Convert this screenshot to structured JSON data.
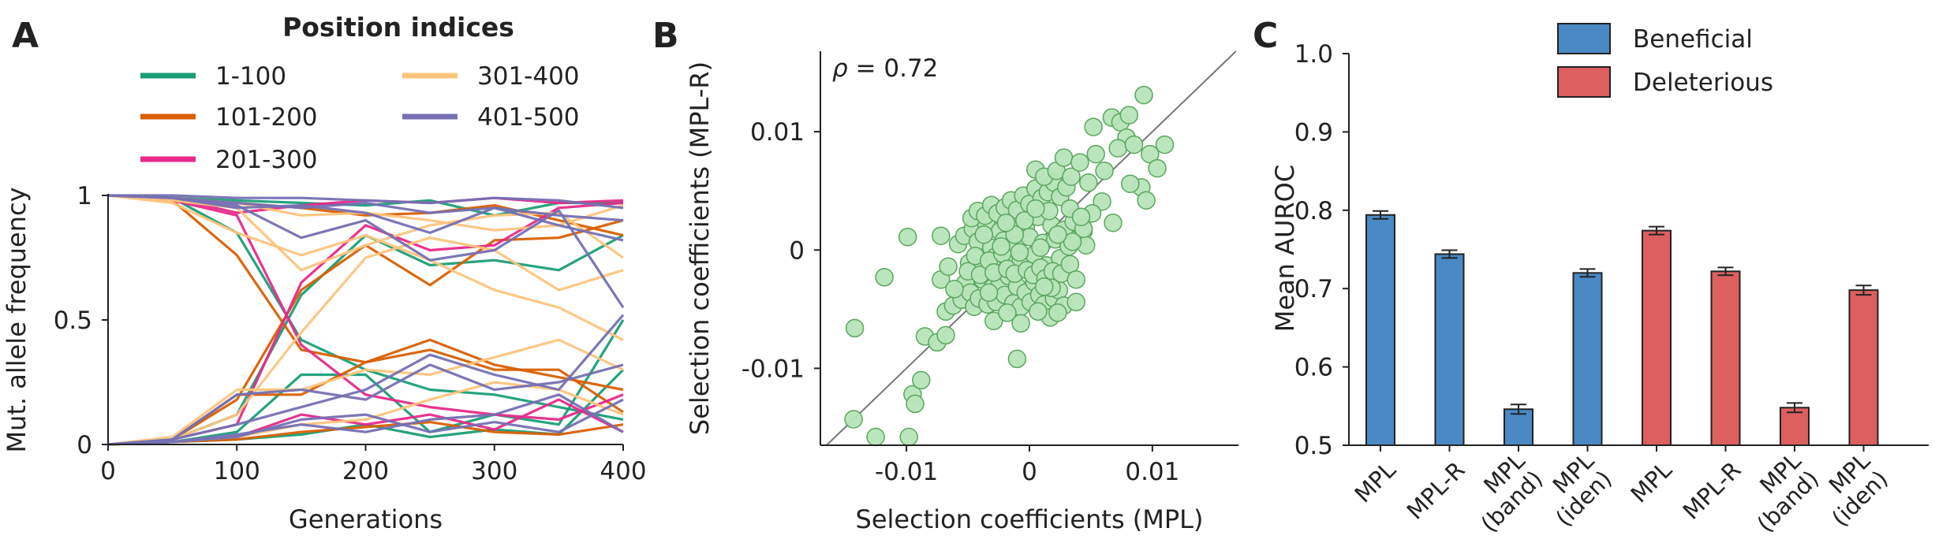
{
  "panels": {
    "a": "A",
    "b": "B",
    "c": "C"
  },
  "colors": {
    "c1": "#1b9e77",
    "c2": "#d95f02",
    "c3": "#e7298a",
    "c4": "#fdc47d",
    "c5": "#7570b3",
    "scatter_fill": "#b7e4b9",
    "scatter_edge": "#5aa65e",
    "beneficial": "#4a89c4",
    "deleterious": "#de5f5f"
  },
  "chart_data": [
    {
      "type": "line",
      "legend_title": "Position indices",
      "xlabel": "Generations",
      "ylabel": "Mut. allele frequency",
      "xlim": [
        0,
        400
      ],
      "ylim": [
        0,
        1
      ],
      "xticks": [
        0,
        100,
        200,
        300,
        400
      ],
      "yticks": [
        0,
        0.5,
        1
      ],
      "ytick_labels": [
        "0",
        "0.5",
        "1"
      ],
      "x": [
        0,
        50,
        100,
        150,
        200,
        250,
        300,
        350,
        400
      ],
      "series": [
        {
          "name": "1-100",
          "color_key": "c1",
          "lines": [
            [
              1,
              0.99,
              0.85,
              0.42,
              0.3,
              0.22,
              0.2,
              0.15,
              0.1
            ],
            [
              0,
              0.02,
              0.12,
              0.6,
              0.84,
              0.72,
              0.74,
              0.7,
              0.84
            ],
            [
              1,
              0.99,
              0.98,
              0.97,
              0.96,
              0.98,
              0.92,
              0.97,
              0.97
            ],
            [
              0,
              0.01,
              0.05,
              0.28,
              0.28,
              0.05,
              0.12,
              0.08,
              0.5
            ],
            [
              0,
              0.01,
              0.02,
              0.04,
              0.08,
              0.03,
              0.06,
              0.04,
              0.3
            ]
          ]
        },
        {
          "name": "101-200",
          "color_key": "c2",
          "lines": [
            [
              1,
              0.98,
              0.76,
              0.38,
              0.33,
              0.42,
              0.32,
              0.27,
              0.22
            ],
            [
              0,
              0.02,
              0.18,
              0.62,
              0.8,
              0.64,
              0.82,
              0.83,
              0.9
            ],
            [
              1,
              0.99,
              0.97,
              0.95,
              0.92,
              0.93,
              0.96,
              0.9,
              0.84
            ],
            [
              0,
              0.02,
              0.2,
              0.2,
              0.33,
              0.38,
              0.3,
              0.3,
              0.13
            ],
            [
              0,
              0.01,
              0.02,
              0.05,
              0.07,
              0.09,
              0.05,
              0.04,
              0.08
            ]
          ]
        },
        {
          "name": "201-300",
          "color_key": "c3",
          "lines": [
            [
              1,
              0.98,
              0.92,
              0.4,
              0.2,
              0.15,
              0.12,
              0.1,
              0.2
            ],
            [
              0,
              0.02,
              0.08,
              0.65,
              0.88,
              0.78,
              0.8,
              0.95,
              0.97
            ],
            [
              1,
              0.99,
              0.93,
              0.96,
              0.98,
              0.97,
              0.99,
              0.97,
              0.98
            ],
            [
              0,
              0.01,
              0.03,
              0.12,
              0.08,
              0.12,
              0.06,
              0.18,
              0.05
            ]
          ]
        },
        {
          "name": "301-400",
          "color_key": "c4",
          "lines": [
            [
              0,
              0.02,
              0.12,
              0.45,
              0.75,
              0.83,
              0.78,
              0.62,
              0.7
            ],
            [
              0,
              0.03,
              0.22,
              0.22,
              0.3,
              0.28,
              0.35,
              0.42,
              0.3
            ],
            [
              1,
              0.98,
              0.95,
              0.7,
              0.8,
              0.88,
              0.92,
              0.93,
              0.75
            ],
            [
              1,
              0.99,
              0.97,
              0.92,
              0.93,
              0.9,
              0.86,
              0.88,
              0.96
            ],
            [
              0,
              0.01,
              0.03,
              0.08,
              0.1,
              0.18,
              0.25,
              0.22,
              0.12
            ],
            [
              1,
              0.97,
              0.85,
              0.76,
              0.84,
              0.74,
              0.62,
              0.55,
              0.42
            ]
          ]
        },
        {
          "name": "401-500",
          "color_key": "c5",
          "lines": [
            [
              1,
              1,
              0.99,
              0.99,
              0.98,
              0.97,
              0.99,
              0.98,
              0.95
            ],
            [
              1,
              0.99,
              0.97,
              0.95,
              0.97,
              0.93,
              0.95,
              0.92,
              0.9
            ],
            [
              0,
              0.02,
              0.08,
              0.15,
              0.22,
              0.36,
              0.28,
              0.22,
              0.52
            ],
            [
              0,
              0.01,
              0.04,
              0.08,
              0.05,
              0.1,
              0.12,
              0.2,
              0.05
            ],
            [
              1,
              0.99,
              0.96,
              0.83,
              0.9,
              0.74,
              0.78,
              0.94,
              0.55
            ],
            [
              0,
              0.02,
              0.2,
              0.22,
              0.18,
              0.32,
              0.22,
              0.25,
              0.32
            ],
            [
              0,
              0.01,
              0.03,
              0.1,
              0.12,
              0.05,
              0.09,
              0.05,
              0.18
            ],
            [
              1,
              0.99,
              0.95,
              0.96,
              0.93,
              0.85,
              0.95,
              0.88,
              0.82
            ]
          ]
        }
      ]
    },
    {
      "type": "scatter",
      "annotation_symbol": "ρ",
      "annotation_value": " = 0.72",
      "xlabel": "Selection coefficients (MPL)",
      "ylabel": "Selection coefficients (MPL-R)",
      "xlim": [
        -0.017,
        0.017
      ],
      "ylim": [
        -0.0165,
        0.0168
      ],
      "xticks": [
        -0.01,
        0,
        0.01
      ],
      "xtick_labels": [
        "-0.01",
        "0",
        "0.01"
      ],
      "yticks": [
        -0.01,
        0,
        0.01
      ],
      "ytick_labels": [
        "-0.01",
        "0",
        "0.01"
      ],
      "diagonal": true,
      "points": [
        [
          -0.0143,
          -0.0143
        ],
        [
          -0.0125,
          -0.0158
        ],
        [
          -0.0098,
          -0.0158
        ],
        [
          -0.0142,
          -0.0066
        ],
        [
          -0.0118,
          -0.0023
        ],
        [
          -0.0095,
          -0.0122
        ],
        [
          -0.0093,
          -0.013
        ],
        [
          -0.0088,
          -0.011
        ],
        [
          -0.0085,
          -0.0073
        ],
        [
          -0.0075,
          -0.0078
        ],
        [
          -0.0068,
          -0.0072
        ],
        [
          -0.0099,
          0.0011
        ],
        [
          -0.0072,
          -0.0025
        ],
        [
          -0.0068,
          -0.0052
        ],
        [
          -0.0062,
          -0.0047
        ],
        [
          -0.0058,
          -0.0035
        ],
        [
          -0.0055,
          -0.0042
        ],
        [
          -0.0052,
          -0.0028
        ],
        [
          -0.0048,
          -0.0036
        ],
        [
          -0.0045,
          -0.0048
        ],
        [
          -0.0041,
          -0.0041
        ],
        [
          -0.0038,
          -0.0025
        ],
        [
          -0.0034,
          -0.0046
        ],
        [
          -0.003,
          -0.0032
        ],
        [
          -0.0027,
          -0.0044
        ],
        [
          -0.0024,
          -0.0029
        ],
        [
          -0.002,
          -0.0038
        ],
        [
          -0.0017,
          -0.0022
        ],
        [
          -0.0013,
          -0.0045
        ],
        [
          -0.001,
          -0.0031
        ],
        [
          -0.0007,
          -0.0048
        ],
        [
          -0.0003,
          -0.0036
        ],
        [
          0.0001,
          -0.0044
        ],
        [
          0.0004,
          -0.0027
        ],
        [
          0.0008,
          -0.0038
        ],
        [
          0.0012,
          -0.0046
        ],
        [
          0.0016,
          -0.0029
        ],
        [
          0.002,
          -0.0041
        ],
        [
          0.0024,
          -0.0034
        ],
        [
          0.0028,
          -0.0047
        ],
        [
          -0.0058,
          0.0005
        ],
        [
          -0.0053,
          0.0012
        ],
        [
          -0.0049,
          -0.0011
        ],
        [
          -0.0046,
          0.0018
        ],
        [
          -0.0042,
          0.0007
        ],
        [
          -0.0039,
          -0.0015
        ],
        [
          -0.0035,
          0.0022
        ],
        [
          -0.0031,
          0.0002
        ],
        [
          -0.0028,
          -0.0006
        ],
        [
          -0.0024,
          0.0016
        ],
        [
          -0.0021,
          0.0008
        ],
        [
          -0.0017,
          -0.0012
        ],
        [
          -0.0014,
          0.0025
        ],
        [
          -0.001,
          0.0004
        ],
        [
          -0.0007,
          -0.0009
        ],
        [
          -0.0003,
          0.0019
        ],
        [
          0,
          0.0011
        ],
        [
          0.0004,
          -0.0004
        ],
        [
          0.0007,
          0.0028
        ],
        [
          0.0011,
          0.0006
        ],
        [
          0.0014,
          -0.0013
        ],
        [
          0.0018,
          0.0021
        ],
        [
          0.0021,
          0.0009
        ],
        [
          0.0025,
          -0.0007
        ],
        [
          0.0028,
          0.0017
        ],
        [
          0.0032,
          0.0003
        ],
        [
          0.0036,
          0.0024
        ],
        [
          0.004,
          0.001
        ],
        [
          -0.0047,
          0.0027
        ],
        [
          -0.0042,
          0.0033
        ],
        [
          -0.0036,
          0.0029
        ],
        [
          -0.0031,
          0.0038
        ],
        [
          -0.0026,
          0.0031
        ],
        [
          -0.002,
          0.0036
        ],
        [
          -0.0015,
          0.0042
        ],
        [
          -0.001,
          0.0034
        ],
        [
          -0.0005,
          0.0046
        ],
        [
          0,
          0.0039
        ],
        [
          0.0005,
          0.0052
        ],
        [
          0.001,
          0.0044
        ],
        [
          0.0015,
          0.0049
        ],
        [
          0.002,
          0.0057
        ],
        [
          0.0025,
          0.0045
        ],
        [
          0.003,
          0.0053
        ],
        [
          -0.005,
          -0.0018
        ],
        [
          -0.0044,
          -0.0005
        ],
        [
          -0.004,
          -0.0021
        ],
        [
          -0.0033,
          -0.0009
        ],
        [
          -0.0029,
          -0.0019
        ],
        [
          -0.0022,
          -0.0003
        ],
        [
          -0.0018,
          -0.0016
        ],
        [
          -0.0012,
          -0.002
        ],
        [
          -0.0008,
          -0.0002
        ],
        [
          -0.0002,
          -0.0017
        ],
        [
          0.0003,
          -0.0021
        ],
        [
          0.0009,
          -0.0015
        ],
        [
          0.0013,
          -0.0024
        ],
        [
          0.0019,
          -0.0018
        ],
        [
          0.0026,
          -0.002
        ],
        [
          0.0033,
          -0.0012
        ],
        [
          0.0038,
          -0.0025
        ],
        [
          0.0044,
          0.0016
        ],
        [
          0.0046,
          0.0004
        ],
        [
          0.0005,
          0.0068
        ],
        [
          0.0012,
          0.0062
        ],
        [
          0.0022,
          0.0067
        ],
        [
          0.0028,
          0.0078
        ],
        [
          0.0034,
          0.0062
        ],
        [
          0.0041,
          0.0074
        ],
        [
          0.0048,
          0.0057
        ],
        [
          0.0054,
          0.0081
        ],
        [
          0.0061,
          0.0067
        ],
        [
          0.0052,
          0.0104
        ],
        [
          0.0067,
          0.0112
        ],
        [
          0.0074,
          0.0108
        ],
        [
          0.0079,
          0.0095
        ],
        [
          0.0081,
          0.0114
        ],
        [
          0.0072,
          0.0086
        ],
        [
          0.0085,
          0.0089
        ],
        [
          0.0093,
          0.0131
        ],
        [
          0.0098,
          0.0081
        ],
        [
          0.0104,
          0.0069
        ],
        [
          0.011,
          0.0089
        ],
        [
          0.0091,
          0.0053
        ],
        [
          0.0082,
          0.0056
        ],
        [
          0.0095,
          0.0042
        ],
        [
          0.0068,
          0.0023
        ],
        [
          0.0059,
          0.0041
        ],
        [
          0.0051,
          0.0031
        ],
        [
          0.0044,
          0.0018
        ],
        [
          0.0035,
          0.0007
        ],
        [
          -0.0072,
          0.0012
        ],
        [
          -0.0066,
          -0.0014
        ],
        [
          -0.0061,
          -0.0033
        ],
        [
          -0.0007,
          -0.0062
        ],
        [
          0.0017,
          -0.0057
        ],
        [
          -0.0029,
          -0.006
        ],
        [
          0.0007,
          -0.0052
        ],
        [
          -0.0018,
          -0.0053
        ],
        [
          -0.001,
          -0.0092
        ],
        [
          0.0038,
          -0.0044
        ],
        [
          0.0023,
          -0.0053
        ],
        [
          0.0018,
          -0.0032
        ],
        [
          -0.0033,
          -0.0036
        ],
        [
          -0.0023,
          0.0003
        ],
        [
          0.0009,
          0.0002
        ],
        [
          0.0023,
          0.0013
        ],
        [
          -0.0037,
          0.0013
        ],
        [
          -0.0012,
          0.0013
        ],
        [
          0.0016,
          0.0033
        ],
        [
          0.0033,
          0.0035
        ],
        [
          -0.0004,
          0.0025
        ],
        [
          0.0042,
          0.0028
        ],
        [
          0.0005,
          0.0035
        ],
        [
          -0.0019,
          0.0023
        ],
        [
          0.0012,
          -0.0031
        ]
      ]
    },
    {
      "type": "bar",
      "ylabel": "Mean AUROC",
      "ylim": [
        0.5,
        1.0
      ],
      "yticks": [
        0.5,
        0.6,
        0.7,
        0.8,
        0.9,
        1.0
      ],
      "ytick_labels": [
        "0.5",
        "0.6",
        "0.7",
        "0.8",
        "0.9",
        "1.0"
      ],
      "legend": [
        {
          "name": "Beneficial",
          "color_key": "beneficial"
        },
        {
          "name": "Deleterious",
          "color_key": "deleterious"
        }
      ],
      "bars": [
        {
          "label": "MPL",
          "value": 0.794,
          "err": 0.005,
          "group": 0
        },
        {
          "label": "MPL-R",
          "value": 0.744,
          "err": 0.005,
          "group": 0
        },
        {
          "label": "MPL\n(band)",
          "value": 0.546,
          "err": 0.006,
          "group": 0
        },
        {
          "label": "MPL\n(iden)",
          "value": 0.72,
          "err": 0.005,
          "group": 0
        },
        {
          "label": "MPL",
          "value": 0.774,
          "err": 0.005,
          "group": 1
        },
        {
          "label": "MPL-R",
          "value": 0.722,
          "err": 0.005,
          "group": 1
        },
        {
          "label": "MPL\n(band)",
          "value": 0.548,
          "err": 0.006,
          "group": 1
        },
        {
          "label": "MPL\n(iden)",
          "value": 0.698,
          "err": 0.006,
          "group": 1
        }
      ]
    }
  ]
}
